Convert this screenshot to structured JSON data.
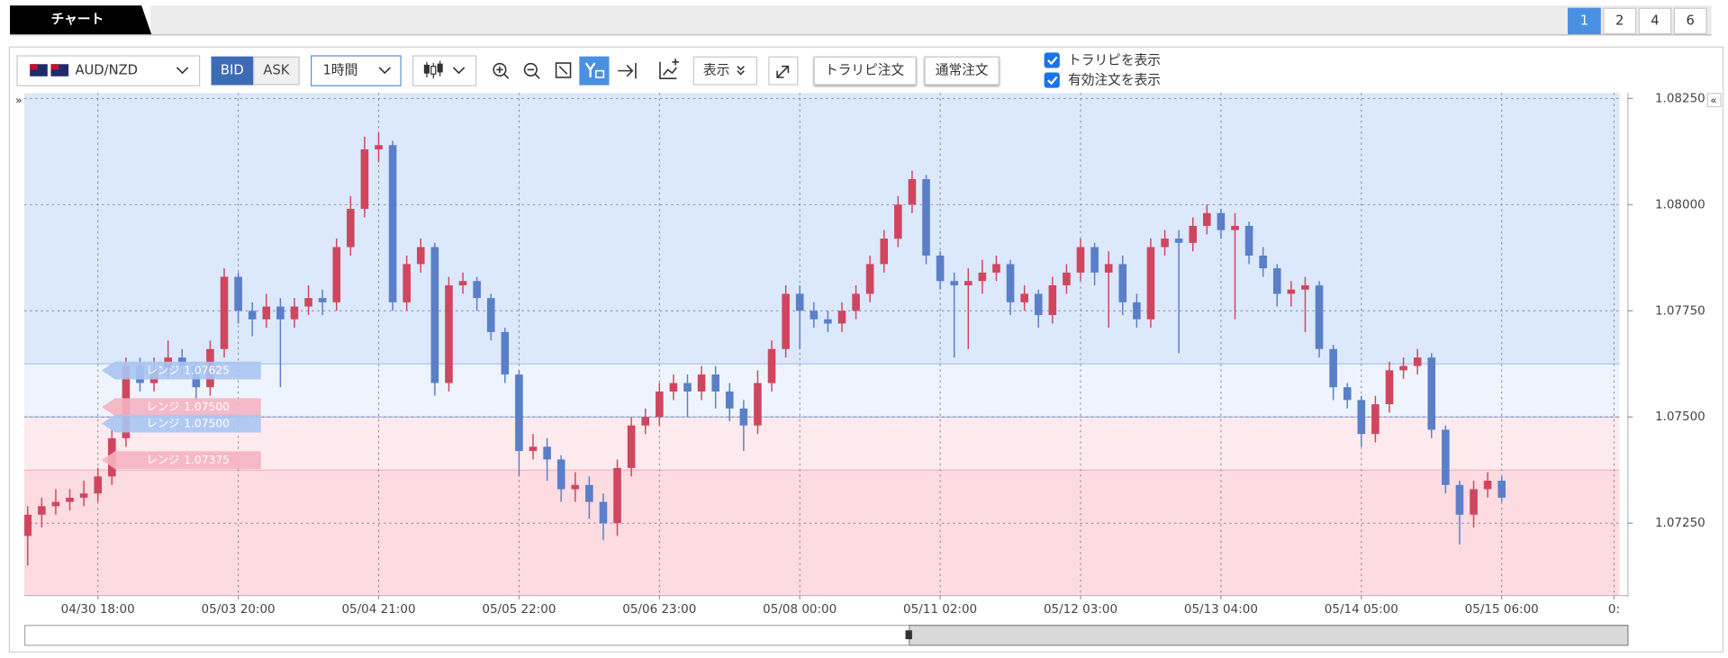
{
  "tabs": {
    "title": "チャート",
    "pages": [
      1,
      2,
      4,
      6
    ],
    "active": 1
  },
  "toolbar": {
    "symbol": "AUD/NZD",
    "sides": [
      "BID",
      "ASK"
    ],
    "active_side": "BID",
    "interval": "1時間",
    "display": "表示",
    "buttons": [
      "トラリピ注文",
      "通常注文"
    ],
    "checkboxes": [
      {
        "label": "トラリピを表示",
        "checked": true
      },
      {
        "label": "有効注文を表示",
        "checked": true
      }
    ]
  },
  "chart_data": {
    "type": "candlestick",
    "up_color": "#d0465f",
    "down_color": "#5a7fc8",
    "grid": true,
    "ylim": [
      1.07081,
      1.08263
    ],
    "yticks": [
      {
        "value": 1.0825,
        "label": "1.08250"
      },
      {
        "value": 1.08,
        "label": "1.08000"
      },
      {
        "value": 1.0775,
        "label": "1.07750"
      },
      {
        "value": 1.075,
        "label": "1.07500"
      },
      {
        "value": 1.0725,
        "label": "1.07250"
      }
    ],
    "xlim": [
      -0.24,
      113.4
    ],
    "xticks": [
      {
        "value": 5,
        "label": "04/30 18:00"
      },
      {
        "value": 15,
        "label": "05/03 20:00"
      },
      {
        "value": 25,
        "label": "05/04 21:00"
      },
      {
        "value": 35,
        "label": "05/05 22:00"
      },
      {
        "value": 45,
        "label": "05/06 23:00"
      },
      {
        "value": 55,
        "label": "05/08 00:00"
      },
      {
        "value": 65,
        "label": "05/11 02:00"
      },
      {
        "value": 75,
        "label": "05/12 03:00"
      },
      {
        "value": 85,
        "label": "05/13 04:00"
      },
      {
        "value": 95,
        "label": "05/14 05:00"
      },
      {
        "value": 105,
        "label": "05/15 06:00"
      },
      {
        "value": 113,
        "label": "0:"
      }
    ],
    "orders": [
      {
        "label": "レンジ",
        "price": {
          "value": 1.07625,
          "label": "1.07625"
        },
        "color": "#a9c5f3"
      },
      {
        "label": "レンジ",
        "price": {
          "value": 1.075,
          "label": "1.07500"
        },
        "color": "#f5b3c1"
      },
      {
        "label": "レンジ",
        "price": {
          "value": 1.075,
          "label": "1.07500"
        },
        "color": "#a9c5f3"
      },
      {
        "label": "レンジ",
        "price": {
          "value": 1.07375,
          "label": "1.07375"
        },
        "color": "#f5b3c1"
      }
    ],
    "candles": [
      [
        1.0722,
        1.0729,
        1.0715,
        1.0727
      ],
      [
        1.0727,
        1.0731,
        1.0724,
        1.0729
      ],
      [
        1.0729,
        1.0733,
        1.0727,
        1.073
      ],
      [
        1.073,
        1.0733,
        1.0728,
        1.0731
      ],
      [
        1.0731,
        1.0735,
        1.0729,
        1.0732
      ],
      [
        1.0732,
        1.0738,
        1.073,
        1.0736
      ],
      [
        1.0736,
        1.0747,
        1.0734,
        1.0745
      ],
      [
        1.0745,
        1.0764,
        1.0743,
        1.0762
      ],
      [
        1.0762,
        1.0764,
        1.0756,
        1.0758
      ],
      [
        1.0758,
        1.0764,
        1.0756,
        1.0761
      ],
      [
        1.0761,
        1.0768,
        1.0759,
        1.0764
      ],
      [
        1.0764,
        1.0766,
        1.076,
        1.0762
      ],
      [
        1.0762,
        1.0763,
        1.0754,
        1.0757
      ],
      [
        1.0757,
        1.0768,
        1.0755,
        1.0766
      ],
      [
        1.0766,
        1.0785,
        1.0764,
        1.0783
      ],
      [
        1.0783,
        1.0784,
        1.0772,
        1.0775
      ],
      [
        1.0775,
        1.0777,
        1.0769,
        1.0773
      ],
      [
        1.0773,
        1.0779,
        1.0771,
        1.0776
      ],
      [
        1.0776,
        1.0778,
        1.0757,
        1.0773
      ],
      [
        1.0773,
        1.0778,
        1.0771,
        1.0776
      ],
      [
        1.0776,
        1.0781,
        1.0774,
        1.0778
      ],
      [
        1.0778,
        1.078,
        1.0774,
        1.0777
      ],
      [
        1.0777,
        1.0792,
        1.0775,
        1.079
      ],
      [
        1.079,
        1.0802,
        1.0788,
        1.0799
      ],
      [
        1.0799,
        1.0816,
        1.0797,
        1.0813
      ],
      [
        1.0813,
        1.0817,
        1.081,
        1.0814
      ],
      [
        1.0814,
        1.0815,
        1.0775,
        1.0777
      ],
      [
        1.0777,
        1.0788,
        1.0775,
        1.0786
      ],
      [
        1.0786,
        1.0792,
        1.0784,
        1.079
      ],
      [
        1.079,
        1.0791,
        1.0755,
        1.0758
      ],
      [
        1.0758,
        1.0783,
        1.0756,
        1.0781
      ],
      [
        1.0781,
        1.0784,
        1.0779,
        1.0782
      ],
      [
        1.0782,
        1.0783,
        1.0775,
        1.0778
      ],
      [
        1.0778,
        1.0779,
        1.0768,
        1.077
      ],
      [
        1.077,
        1.0771,
        1.0758,
        1.076
      ],
      [
        1.076,
        1.0761,
        1.0736,
        1.0742
      ],
      [
        1.0742,
        1.0746,
        1.074,
        1.0743
      ],
      [
        1.0743,
        1.0745,
        1.0735,
        1.074
      ],
      [
        1.074,
        1.0741,
        1.073,
        1.0733
      ],
      [
        1.0733,
        1.0737,
        1.073,
        1.0734
      ],
      [
        1.0734,
        1.0736,
        1.0726,
        1.073
      ],
      [
        1.073,
        1.0732,
        1.0721,
        1.0725
      ],
      [
        1.0725,
        1.074,
        1.0722,
        1.0738
      ],
      [
        1.0738,
        1.075,
        1.0736,
        1.0748
      ],
      [
        1.0748,
        1.0752,
        1.0746,
        1.075
      ],
      [
        1.075,
        1.0758,
        1.0748,
        1.0756
      ],
      [
        1.0756,
        1.076,
        1.0754,
        1.0758
      ],
      [
        1.0758,
        1.076,
        1.075,
        1.0756
      ],
      [
        1.0756,
        1.0762,
        1.0754,
        1.076
      ],
      [
        1.076,
        1.0762,
        1.0752,
        1.0756
      ],
      [
        1.0756,
        1.0758,
        1.0749,
        1.0752
      ],
      [
        1.0752,
        1.0754,
        1.0742,
        1.0748
      ],
      [
        1.0748,
        1.0761,
        1.0746,
        1.0758
      ],
      [
        1.0758,
        1.0768,
        1.0756,
        1.0766
      ],
      [
        1.0766,
        1.0781,
        1.0764,
        1.0779
      ],
      [
        1.0779,
        1.0781,
        1.0766,
        1.0775
      ],
      [
        1.0775,
        1.0777,
        1.0771,
        1.0773
      ],
      [
        1.0773,
        1.0775,
        1.077,
        1.0772
      ],
      [
        1.0772,
        1.0777,
        1.077,
        1.0775
      ],
      [
        1.0775,
        1.0781,
        1.0773,
        1.0779
      ],
      [
        1.0779,
        1.0788,
        1.0777,
        1.0786
      ],
      [
        1.0786,
        1.0794,
        1.0784,
        1.0792
      ],
      [
        1.0792,
        1.0802,
        1.079,
        1.08
      ],
      [
        1.08,
        1.0808,
        1.0798,
        1.0806
      ],
      [
        1.0806,
        1.0807,
        1.0786,
        1.0788
      ],
      [
        1.0788,
        1.0789,
        1.078,
        1.0782
      ],
      [
        1.0782,
        1.0784,
        1.0764,
        1.0781
      ],
      [
        1.0781,
        1.0785,
        1.0766,
        1.0782
      ],
      [
        1.0782,
        1.0787,
        1.0779,
        1.0784
      ],
      [
        1.0784,
        1.0788,
        1.0782,
        1.0786
      ],
      [
        1.0786,
        1.0787,
        1.0774,
        1.0777
      ],
      [
        1.0777,
        1.0781,
        1.0775,
        1.0779
      ],
      [
        1.0779,
        1.078,
        1.0771,
        1.0774
      ],
      [
        1.0774,
        1.0783,
        1.0772,
        1.0781
      ],
      [
        1.0781,
        1.0786,
        1.0779,
        1.0784
      ],
      [
        1.0784,
        1.0792,
        1.0782,
        1.079
      ],
      [
        1.079,
        1.0791,
        1.0781,
        1.0784
      ],
      [
        1.0784,
        1.0789,
        1.0771,
        1.0786
      ],
      [
        1.0786,
        1.0788,
        1.0774,
        1.0777
      ],
      [
        1.0777,
        1.0779,
        1.0771,
        1.0773
      ],
      [
        1.0773,
        1.0792,
        1.0771,
        1.079
      ],
      [
        1.079,
        1.0794,
        1.0788,
        1.0792
      ],
      [
        1.0792,
        1.0794,
        1.0765,
        1.0791
      ],
      [
        1.0791,
        1.0797,
        1.0789,
        1.0795
      ],
      [
        1.0795,
        1.08,
        1.0793,
        1.0798
      ],
      [
        1.0798,
        1.0799,
        1.0792,
        1.0794
      ],
      [
        1.0794,
        1.0798,
        1.0773,
        1.0795
      ],
      [
        1.0795,
        1.0796,
        1.0786,
        1.0788
      ],
      [
        1.0788,
        1.079,
        1.0783,
        1.0785
      ],
      [
        1.0785,
        1.0786,
        1.0776,
        1.0779
      ],
      [
        1.0779,
        1.0782,
        1.0776,
        1.078
      ],
      [
        1.078,
        1.0783,
        1.077,
        1.0781
      ],
      [
        1.0781,
        1.0782,
        1.0764,
        1.0766
      ],
      [
        1.0766,
        1.0767,
        1.0754,
        1.0757
      ],
      [
        1.0757,
        1.0758,
        1.0752,
        1.0754
      ],
      [
        1.0754,
        1.0755,
        1.0743,
        1.0746
      ],
      [
        1.0746,
        1.0755,
        1.0744,
        1.0753
      ],
      [
        1.0753,
        1.0763,
        1.0751,
        1.0761
      ],
      [
        1.0761,
        1.0764,
        1.0759,
        1.0762
      ],
      [
        1.0762,
        1.0766,
        1.076,
        1.0764
      ],
      [
        1.0764,
        1.0765,
        1.0745,
        1.0747
      ],
      [
        1.0747,
        1.0748,
        1.0732,
        1.0734
      ],
      [
        1.0734,
        1.0735,
        1.072,
        1.0727
      ],
      [
        1.0727,
        1.0735,
        1.0724,
        1.0733
      ],
      [
        1.0733,
        1.0737,
        1.0731,
        1.0735
      ],
      [
        1.0735,
        1.0736,
        1.073,
        1.0731
      ]
    ]
  }
}
